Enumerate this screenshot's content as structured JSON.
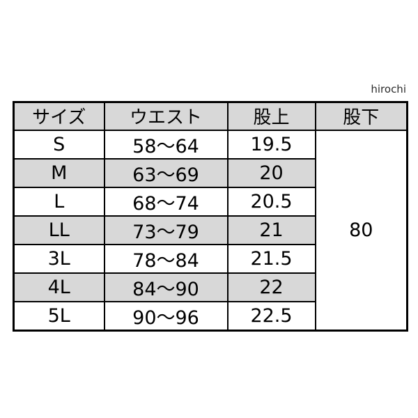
{
  "page": {
    "watermark": "hirochi",
    "background_color": "#ffffff"
  },
  "chart_data": {
    "type": "table",
    "title": "",
    "columns": [
      "サイズ",
      "ウエスト",
      "股上",
      "股下"
    ],
    "rows": [
      [
        "S",
        "58〜64",
        "19.5"
      ],
      [
        "M",
        "63〜69",
        "20"
      ],
      [
        "L",
        "68〜74",
        "20.5"
      ],
      [
        "LL",
        "73〜79",
        "21"
      ],
      [
        "3L",
        "78〜84",
        "21.5"
      ],
      [
        "4L",
        "84〜90",
        "22"
      ],
      [
        "5L",
        "90〜96",
        "22.5"
      ]
    ],
    "inseam_merged_value": "80",
    "numeric": {
      "sizes": [
        "S",
        "M",
        "L",
        "LL",
        "3L",
        "4L",
        "5L"
      ],
      "waist_ranges": [
        [
          58,
          64
        ],
        [
          63,
          69
        ],
        [
          68,
          74
        ],
        [
          73,
          79
        ],
        [
          78,
          84
        ],
        [
          84,
          90
        ],
        [
          90,
          96
        ]
      ],
      "rise": [
        19.5,
        20,
        20.5,
        21,
        21.5,
        22,
        22.5
      ],
      "inseam": 80
    },
    "layout_hints": {
      "zebra_striping": true,
      "gray_rows": [
        "M",
        "LL",
        "4L"
      ],
      "inseam_cell_rowspan": 7
    }
  },
  "colors": {
    "header_bg": "#d8d8d8",
    "alt_row_bg": "#d8d8d8",
    "row_bg": "#ffffff",
    "border": "#000000",
    "text": "#000000",
    "watermark_text": "#2b2b2b"
  }
}
